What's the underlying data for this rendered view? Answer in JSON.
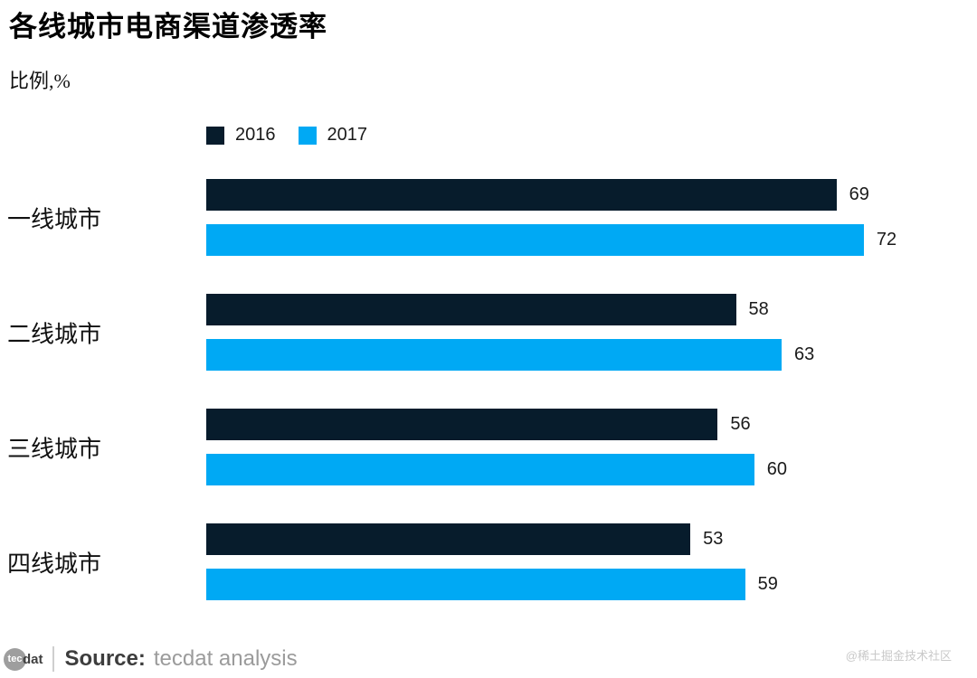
{
  "header": {
    "title": "各线城市电商渠道渗透率",
    "unit_label": "比例,%"
  },
  "footer": {
    "logo_circle_text": "tec",
    "logo_suffix": "dat",
    "source_label": "Source:",
    "source_text": "tecdat analysis",
    "watermark": "@稀土掘金技术社区"
  },
  "chart_data": {
    "type": "bar",
    "orientation": "horizontal",
    "title": "各线城市电商渠道渗透率",
    "ylabel": "比例,%",
    "categories": [
      "一线城市",
      "二线城市",
      "三线城市",
      "四线城市"
    ],
    "series": [
      {
        "name": "2016",
        "color": "#071c2c",
        "values": [
          69,
          58,
          56,
          53
        ]
      },
      {
        "name": "2017",
        "color": "#00a9f4",
        "values": [
          72,
          63,
          60,
          59
        ]
      }
    ],
    "value_labels": true,
    "legend_position": "top",
    "grid": false,
    "xlim": [
      0,
      73
    ]
  }
}
